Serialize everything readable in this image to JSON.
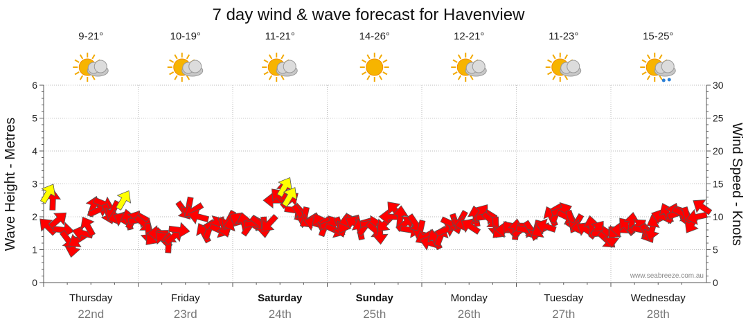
{
  "chart_data": {
    "type": "line",
    "title": "7 day wind & wave forecast for Havenview",
    "ylabel_left": "Wave Height - Metres",
    "ylabel_right": "Wind Speed - Knots",
    "ylim_left": [
      0,
      6
    ],
    "ylim_right": [
      0,
      30
    ],
    "yticks_left": [
      "0",
      "1",
      "2",
      "3",
      "4",
      "5",
      "6"
    ],
    "yticks_right": [
      "0",
      "5",
      "10",
      "15",
      "20",
      "25",
      "30"
    ],
    "credit": "www.seabreeze.com.au",
    "grid": true,
    "days": [
      {
        "name": "Thursday",
        "date": "22nd",
        "temp": "9-21°",
        "weather": "partly-cloudy-icon",
        "bold": false
      },
      {
        "name": "Friday",
        "date": "23rd",
        "temp": "10-19°",
        "weather": "partly-cloudy-icon",
        "bold": false
      },
      {
        "name": "Saturday",
        "date": "24th",
        "temp": "11-21°",
        "weather": "partly-cloudy-icon",
        "bold": true
      },
      {
        "name": "Sunday",
        "date": "25th",
        "temp": "14-26°",
        "weather": "sunny-icon",
        "bold": true
      },
      {
        "name": "Monday",
        "date": "26th",
        "temp": "12-21°",
        "weather": "partly-cloudy-icon",
        "bold": false
      },
      {
        "name": "Tuesday",
        "date": "27th",
        "temp": "11-23°",
        "weather": "partly-cloudy-icon",
        "bold": false
      },
      {
        "name": "Wednesday",
        "date": "28th",
        "temp": "15-25°",
        "weather": "showers-icon",
        "bold": false
      }
    ],
    "series": [
      {
        "values": [
          8.5,
          12.5,
          9.5,
          8,
          6.5,
          5.5,
          6.5,
          7.5,
          8.5,
          11.5,
          11,
          12,
          10.5,
          11,
          10,
          9.5,
          9.5,
          9.5,
          9.5,
          9,
          7.5,
          7,
          7.5,
          6.5,
          6,
          7,
          8,
          11,
          11.5,
          11,
          10,
          7.5,
          8,
          9,
          8,
          8.5,
          9.5,
          9,
          9.5,
          9,
          8.5,
          9,
          9,
          8.5,
          9,
          12.5,
          13,
          14,
          12.5,
          11,
          10.5,
          10,
          9.5,
          9,
          9,
          8.5,
          9,
          8,
          8.5,
          9,
          9.5,
          9,
          8,
          8.5,
          9,
          8,
          7.5,
          9,
          10,
          11,
          10,
          9,
          8,
          9,
          8,
          7,
          6,
          6.5,
          7,
          8,
          9,
          9,
          9.5,
          9,
          8.5,
          10,
          10.5,
          10,
          9.5,
          8.5,
          8,
          8,
          8,
          8,
          8,
          8,
          8,
          8,
          8,
          8.5,
          10,
          10.5,
          11,
          10,
          9.5,
          9,
          8.5,
          8,
          8.5,
          8,
          7.5,
          6.5,
          7,
          8,
          8,
          8.5,
          9,
          8.5,
          8,
          7.5,
          8,
          9.5,
          10,
          10.5,
          10.5,
          10.5,
          10.5,
          10,
          9,
          10,
          11.5
        ],
        "gust": [
          {
            "index": 0,
            "value": 13.5
          },
          {
            "index": 15,
            "value": 12.5
          },
          {
            "index": 47,
            "value": 14.5
          },
          {
            "index": 48,
            "value": 13
          }
        ]
      }
    ]
  }
}
